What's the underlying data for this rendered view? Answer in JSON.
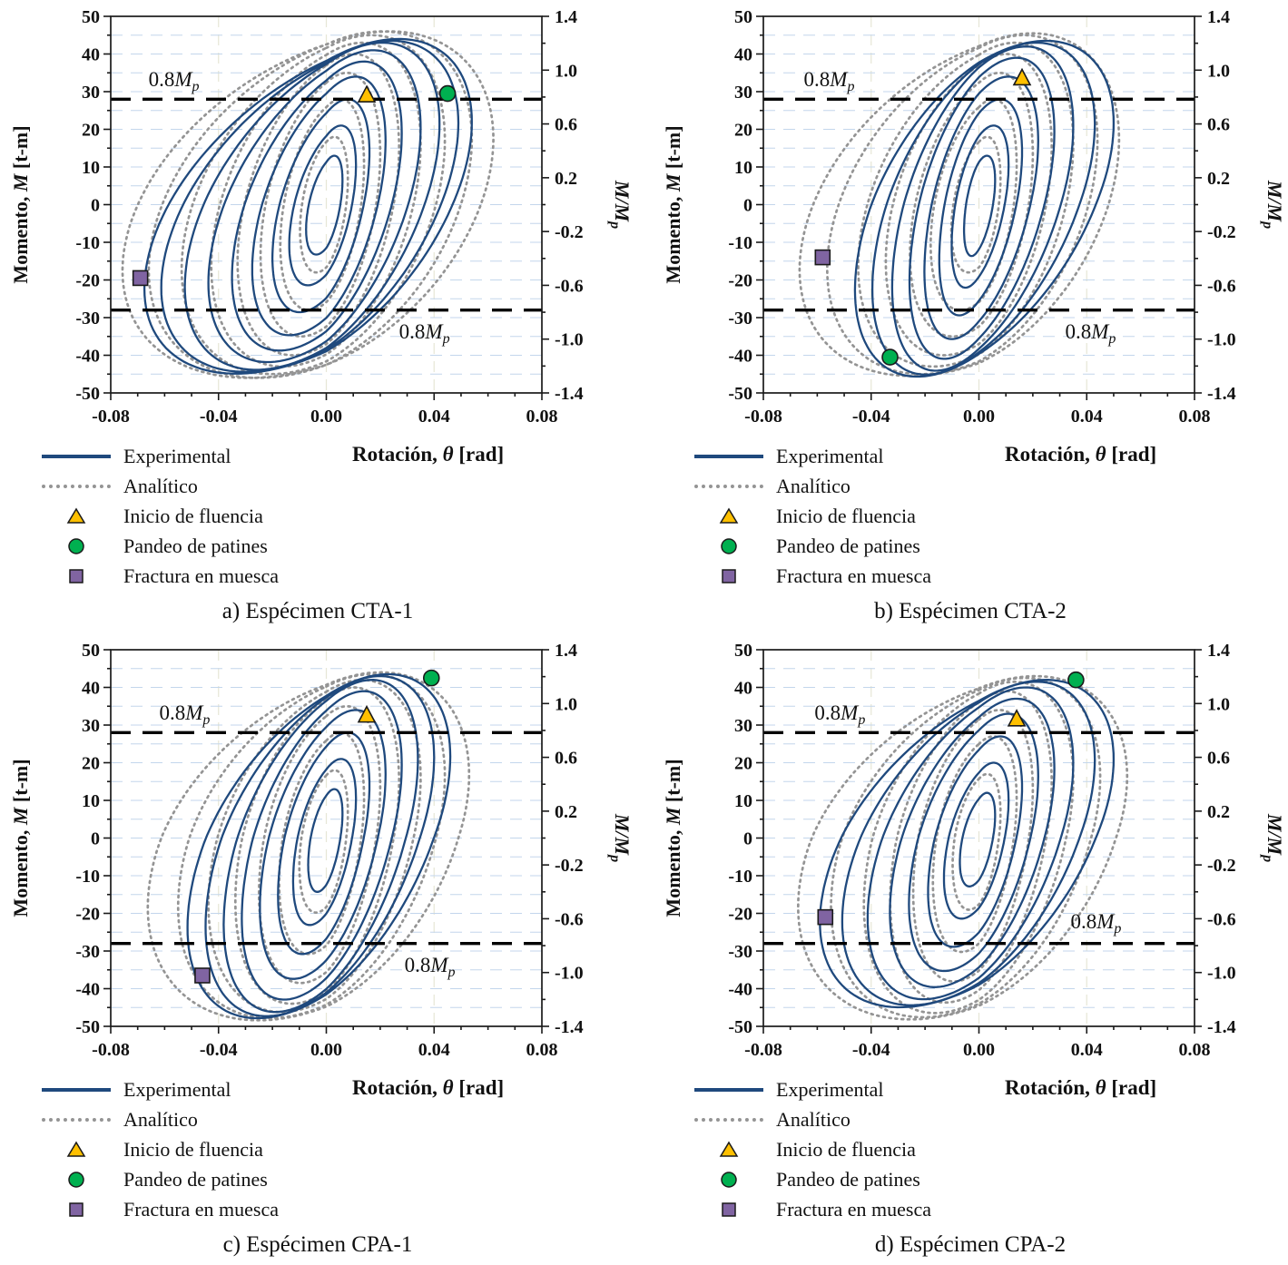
{
  "figure": {
    "legend": {
      "experimental": "Experimental",
      "analitico": "Analítico",
      "fluencia": "Inicio de fluencia",
      "pandeo": "Pandeo de patines",
      "fractura": "Fractura en muesca"
    },
    "axis": {
      "xlabel_pre": "Rotación, ",
      "xlabel_sym": "θ",
      "xlabel_post": " [rad]",
      "ylabel_left_pre": "Momento, ",
      "ylabel_left_sym": "M",
      "ylabel_left_post": " [t-m]",
      "ylabel_right_num": "M",
      "ylabel_right_den": "M",
      "ylabel_right_sub": "p",
      "mp_pre": "0.8",
      "mp_sym": "M",
      "mp_sub": "p"
    },
    "colors": {
      "experimental": "#1F497D",
      "analitico": "#949494",
      "grid_h": "#c3d6ec",
      "grid_v": "#e6e6d6",
      "fluencia": "#FFC000",
      "pandeo": "#00B050",
      "fractura": "#8064A2",
      "marker_edge": "#1a1a1a",
      "mp_line": "#000000",
      "axis": "#1a1a1a"
    }
  },
  "chart_data": [
    {
      "id": "a",
      "type": "line",
      "caption": "a) Espécimen CTA-1",
      "xlabel": "Rotación, θ [rad]",
      "ylabel_left": "Momento, M [t-m]",
      "ylabel_right": "M/Mp",
      "xlim": [
        -0.08,
        0.08
      ],
      "ylim_left": [
        -50,
        50
      ],
      "ylim_right": [
        -1.4,
        1.4
      ],
      "x_ticks": [
        -0.08,
        -0.04,
        0,
        0.04,
        0.08
      ],
      "x_tick_labels": [
        "-0.08",
        "-0.04",
        "0.00",
        "0.04",
        "0.08"
      ],
      "y_ticks_left": [
        50,
        40,
        30,
        20,
        10,
        0,
        -10,
        -20,
        -30,
        -40,
        -50
      ],
      "y_tick_labels_left": [
        "50",
        "40",
        "30",
        "20",
        "10",
        "0",
        "-10",
        "-20",
        "-30",
        "-40",
        "-50"
      ],
      "y_ticks_right": [
        1.4,
        1.0,
        0.6,
        0.2,
        -0.2,
        -0.6,
        -1.0,
        -1.4
      ],
      "y_tick_labels_right": [
        "1.4",
        "1.0",
        "0.6",
        "0.2",
        "-0.2",
        "-0.6",
        "-1.0",
        "-1.4"
      ],
      "grid_v": [
        -0.04,
        0,
        0.04
      ],
      "mp_ratio": 0.8,
      "mp_value": 28,
      "mp_labels": [
        [
          -0.066,
          31.5
        ],
        [
          0.027,
          -35.5
        ]
      ],
      "series": [
        {
          "key": "experimental",
          "name": "Experimental",
          "style": "solid",
          "color": "#1F497D",
          "phase": 1.05,
          "neg_x_scale": 1.25,
          "neg_y_scale": 1.02,
          "loops": [
            [
              0.006,
              13
            ],
            [
              0.011,
              21
            ],
            [
              0.016,
              28
            ],
            [
              0.022,
              34
            ],
            [
              0.028,
              38
            ],
            [
              0.035,
              41
            ],
            [
              0.042,
              43
            ],
            [
              0.049,
              43.5
            ],
            [
              0.054,
              44
            ]
          ]
        },
        {
          "key": "analitico",
          "name": "Analítico",
          "style": "dotted",
          "color": "#949494",
          "phase": 1.18,
          "neg_x_scale": 1.22,
          "neg_y_scale": 1.0,
          "loops": [
            [
              0.008,
              18
            ],
            [
              0.014,
              28
            ],
            [
              0.02,
              35
            ],
            [
              0.027,
              40
            ],
            [
              0.035,
              43
            ],
            [
              0.044,
              45
            ],
            [
              0.054,
              46
            ],
            [
              0.062,
              46
            ]
          ]
        }
      ],
      "events": [
        {
          "name": "Inicio de fluencia",
          "shape": "triangle",
          "x": 0.015,
          "y": 29
        },
        {
          "name": "Pandeo de patines",
          "shape": "circle",
          "x": 0.045,
          "y": 29.5
        },
        {
          "name": "Fractura en muesca",
          "shape": "square",
          "x": -0.069,
          "y": -19.5
        }
      ]
    },
    {
      "id": "b",
      "type": "line",
      "caption": "b) Espécimen CTA-2",
      "xlabel": "Rotación, θ [rad]",
      "ylabel_left": "Momento, M [t-m]",
      "ylabel_right": "M/Mp",
      "xlim": [
        -0.08,
        0.08
      ],
      "ylim_left": [
        -50,
        50
      ],
      "ylim_right": [
        -1.4,
        1.4
      ],
      "x_ticks": [
        -0.08,
        -0.04,
        0,
        0.04,
        0.08
      ],
      "x_tick_labels": [
        "-0.08",
        "-0.04",
        "0.00",
        "0.04",
        "0.08"
      ],
      "y_ticks_left": [
        50,
        40,
        30,
        20,
        10,
        0,
        -10,
        -20,
        -30,
        -40,
        -50
      ],
      "y_tick_labels_left": [
        "50",
        "40",
        "30",
        "20",
        "10",
        "0",
        "-10",
        "-20",
        "-30",
        "-40",
        "-50"
      ],
      "y_ticks_right": [
        1.4,
        1.0,
        0.6,
        0.2,
        -0.2,
        -0.6,
        -1.0,
        -1.4
      ],
      "y_tick_labels_right": [
        "1.4",
        "1.0",
        "0.6",
        "0.2",
        "-0.2",
        "-0.6",
        "-1.0",
        "-1.4"
      ],
      "grid_v": [
        -0.04,
        0,
        0.04
      ],
      "mp_ratio": 0.8,
      "mp_value": 28,
      "mp_labels": [
        [
          -0.065,
          31.5
        ],
        [
          0.032,
          -35.5
        ]
      ],
      "series": [
        {
          "key": "experimental",
          "name": "Experimental",
          "style": "solid",
          "color": "#1F497D",
          "phase": 1.05,
          "neg_x_scale": 0.92,
          "neg_y_scale": 1.05,
          "loops": [
            [
              0.006,
              13
            ],
            [
              0.011,
              21
            ],
            [
              0.016,
              28
            ],
            [
              0.022,
              34
            ],
            [
              0.028,
              39
            ],
            [
              0.035,
              42
            ],
            [
              0.043,
              43
            ],
            [
              0.05,
              43.5
            ]
          ]
        },
        {
          "key": "analitico",
          "name": "Analítico",
          "style": "dotted",
          "color": "#949494",
          "phase": 1.18,
          "neg_x_scale": 1.28,
          "neg_y_scale": 1.0,
          "loops": [
            [
              0.008,
              18
            ],
            [
              0.014,
              28
            ],
            [
              0.02,
              35
            ],
            [
              0.027,
              40
            ],
            [
              0.035,
              43
            ],
            [
              0.044,
              45
            ],
            [
              0.052,
              45.5
            ]
          ]
        }
      ],
      "events": [
        {
          "name": "Inicio de fluencia",
          "shape": "triangle",
          "x": 0.016,
          "y": 33.5
        },
        {
          "name": "Pandeo de patines",
          "shape": "circle",
          "x": -0.033,
          "y": -40.5
        },
        {
          "name": "Fractura en muesca",
          "shape": "square",
          "x": -0.058,
          "y": -14
        }
      ]
    },
    {
      "id": "c",
      "type": "line",
      "caption": "c) Espécimen CPA-1",
      "xlabel": "Rotación, θ [rad]",
      "ylabel_left": "Momento, M [t-m]",
      "ylabel_right": "M/Mp",
      "xlim": [
        -0.08,
        0.08
      ],
      "ylim_left": [
        -50,
        50
      ],
      "ylim_right": [
        -1.4,
        1.4
      ],
      "x_ticks": [
        -0.08,
        -0.04,
        0,
        0.04,
        0.08
      ],
      "x_tick_labels": [
        "-0.08",
        "-0.04",
        "0.00",
        "0.04",
        "0.08"
      ],
      "y_ticks_left": [
        50,
        40,
        30,
        20,
        10,
        0,
        -10,
        -20,
        -30,
        -40,
        -50
      ],
      "y_tick_labels_left": [
        "50",
        "40",
        "30",
        "20",
        "10",
        "0",
        "-10",
        "-20",
        "-30",
        "-40",
        "-50"
      ],
      "y_ticks_right": [
        1.4,
        1.0,
        0.6,
        0.2,
        -0.2,
        -0.6,
        -1.0,
        -1.4
      ],
      "y_tick_labels_right": [
        "1.4",
        "1.0",
        "0.6",
        "0.2",
        "-0.2",
        "-0.6",
        "-1.0",
        "-1.4"
      ],
      "grid_v": [
        -0.04,
        0,
        0.04
      ],
      "mp_ratio": 0.8,
      "mp_value": 28,
      "mp_labels": [
        [
          -0.062,
          31.5
        ],
        [
          0.029,
          -35.5
        ]
      ],
      "series": [
        {
          "key": "experimental",
          "name": "Experimental",
          "style": "solid",
          "color": "#1F497D",
          "phase": 1.05,
          "neg_x_scale": 1.12,
          "neg_y_scale": 1.1,
          "loops": [
            [
              0.006,
              13
            ],
            [
              0.011,
              21
            ],
            [
              0.016,
              28
            ],
            [
              0.022,
              34
            ],
            [
              0.028,
              39
            ],
            [
              0.034,
              42
            ],
            [
              0.04,
              43
            ],
            [
              0.046,
              43.5
            ]
          ]
        },
        {
          "key": "analitico",
          "name": "Analítico",
          "style": "dotted",
          "color": "#949494",
          "phase": 1.18,
          "neg_x_scale": 1.25,
          "neg_y_scale": 1.1,
          "loops": [
            [
              0.008,
              18
            ],
            [
              0.014,
              28
            ],
            [
              0.02,
              35
            ],
            [
              0.027,
              40
            ],
            [
              0.035,
              42
            ],
            [
              0.044,
              43.5
            ],
            [
              0.053,
              44
            ]
          ]
        }
      ],
      "events": [
        {
          "name": "Inicio de fluencia",
          "shape": "triangle",
          "x": 0.015,
          "y": 32.5
        },
        {
          "name": "Pandeo de patines",
          "shape": "circle",
          "x": 0.039,
          "y": 42.5
        },
        {
          "name": "Fractura en muesca",
          "shape": "square",
          "x": -0.046,
          "y": -36.5
        }
      ]
    },
    {
      "id": "d",
      "type": "line",
      "caption": "d) Espécimen CPA-2",
      "xlabel": "Rotación, θ [rad]",
      "ylabel_left": "Momento, M [t-m]",
      "ylabel_right": "M/Mp",
      "xlim": [
        -0.08,
        0.08
      ],
      "ylim_left": [
        -50,
        50
      ],
      "ylim_right": [
        -1.4,
        1.4
      ],
      "x_ticks": [
        -0.08,
        -0.04,
        0,
        0.04,
        0.08
      ],
      "x_tick_labels": [
        "-0.08",
        "-0.04",
        "0.00",
        "0.04",
        "0.08"
      ],
      "y_ticks_left": [
        50,
        40,
        30,
        20,
        10,
        0,
        -10,
        -20,
        -30,
        -40,
        -50
      ],
      "y_tick_labels_left": [
        "50",
        "40",
        "30",
        "20",
        "10",
        "0",
        "-10",
        "-20",
        "-30",
        "-40",
        "-50"
      ],
      "y_ticks_right": [
        1.4,
        1.0,
        0.6,
        0.2,
        -0.2,
        -0.6,
        -1.0,
        -1.4
      ],
      "y_tick_labels_right": [
        "1.4",
        "1.0",
        "0.6",
        "0.2",
        "-0.2",
        "-0.6",
        "-1.0",
        "-1.4"
      ],
      "grid_v": [
        -0.04,
        0,
        0.04
      ],
      "mp_ratio": 0.8,
      "mp_value": 28,
      "mp_labels": [
        [
          -0.061,
          31.5
        ],
        [
          0.034,
          -24
        ]
      ],
      "series": [
        {
          "key": "experimental",
          "name": "Experimental",
          "style": "solid",
          "color": "#1F497D",
          "phase": 1.05,
          "neg_x_scale": 1.18,
          "neg_y_scale": 1.07,
          "loops": [
            [
              0.006,
              12
            ],
            [
              0.011,
              20
            ],
            [
              0.016,
              27
            ],
            [
              0.022,
              33
            ],
            [
              0.028,
              37
            ],
            [
              0.035,
              40
            ],
            [
              0.043,
              41.5
            ],
            [
              0.05,
              42
            ]
          ]
        },
        {
          "key": "analitico",
          "name": "Analítico",
          "style": "dotted",
          "color": "#949494",
          "phase": 1.18,
          "neg_x_scale": 1.22,
          "neg_y_scale": 1.12,
          "loops": [
            [
              0.008,
              17
            ],
            [
              0.014,
              27
            ],
            [
              0.02,
              34
            ],
            [
              0.027,
              39
            ],
            [
              0.035,
              41.5
            ],
            [
              0.045,
              42.5
            ],
            [
              0.055,
              43
            ]
          ]
        }
      ],
      "events": [
        {
          "name": "Inicio de fluencia",
          "shape": "triangle",
          "x": 0.014,
          "y": 31.5
        },
        {
          "name": "Pandeo de patines",
          "shape": "circle",
          "x": 0.036,
          "y": 42
        },
        {
          "name": "Fractura en muesca",
          "shape": "square",
          "x": -0.057,
          "y": -21
        }
      ]
    }
  ]
}
